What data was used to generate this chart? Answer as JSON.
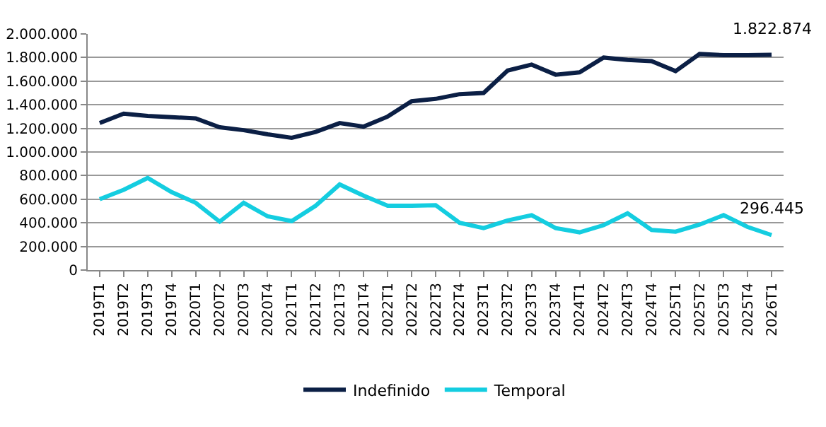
{
  "chart_data": {
    "type": "line",
    "categories": [
      "2019T1",
      "2019T2",
      "2019T3",
      "2019T4",
      "2020T1",
      "2020T2",
      "2020T3",
      "2020T4",
      "2021T1",
      "2021T2",
      "2021T3",
      "2021T4",
      "2022T1",
      "2022T2",
      "2022T3",
      "2022T4",
      "2023T1",
      "2023T2",
      "2023T3",
      "2023T4",
      "2024T1",
      "2024T2",
      "2024T3",
      "2024T4",
      "2025T1",
      "2025T2",
      "2025T3",
      "2025T4",
      "2026T1"
    ],
    "series": [
      {
        "name": "Indefinido",
        "color": "#0b1f45",
        "values": [
          1245000,
          1325000,
          1305000,
          1295000,
          1285000,
          1210000,
          1185000,
          1150000,
          1120000,
          1170000,
          1245000,
          1215000,
          1300000,
          1430000,
          1450000,
          1490000,
          1500000,
          1690000,
          1740000,
          1655000,
          1675000,
          1800000,
          1780000,
          1770000,
          1685000,
          1830000,
          1820000,
          1820000,
          1822874
        ],
        "value_labels": [
          null,
          null,
          null,
          null,
          null,
          null,
          null,
          null,
          null,
          null,
          null,
          null,
          null,
          null,
          null,
          null,
          null,
          null,
          null,
          null,
          null,
          null,
          null,
          null,
          null,
          null,
          null,
          null,
          "1.822.874"
        ]
      },
      {
        "name": "Temporal",
        "color": "#14cde0",
        "values": [
          600000,
          680000,
          780000,
          660000,
          570000,
          410000,
          570000,
          455000,
          415000,
          545000,
          725000,
          630000,
          545000,
          545000,
          550000,
          400000,
          355000,
          420000,
          465000,
          355000,
          320000,
          380000,
          480000,
          340000,
          325000,
          385000,
          465000,
          365000,
          296445
        ],
        "value_labels": [
          null,
          null,
          null,
          null,
          null,
          null,
          null,
          null,
          null,
          null,
          null,
          null,
          null,
          null,
          null,
          null,
          null,
          null,
          null,
          null,
          null,
          null,
          null,
          null,
          null,
          null,
          null,
          null,
          "296.445"
        ]
      }
    ],
    "ylim": [
      0,
      2000000
    ],
    "yticks": [
      {
        "value": 0,
        "label": "0"
      },
      {
        "value": 200000,
        "label": "200.000"
      },
      {
        "value": 400000,
        "label": "400.000"
      },
      {
        "value": 600000,
        "label": "600.000"
      },
      {
        "value": 800000,
        "label": "800.000"
      },
      {
        "value": 1000000,
        "label": "1.000.000"
      },
      {
        "value": 1200000,
        "label": "1.200.000"
      },
      {
        "value": 1400000,
        "label": "1.400.000"
      },
      {
        "value": 1600000,
        "label": "1.600.000"
      },
      {
        "value": 1800000,
        "label": "1.800.000"
      },
      {
        "value": 2000000,
        "label": "2.000.000"
      }
    ],
    "grid": "y",
    "legend": "bottom",
    "marker": "none",
    "line_style": "solid"
  }
}
